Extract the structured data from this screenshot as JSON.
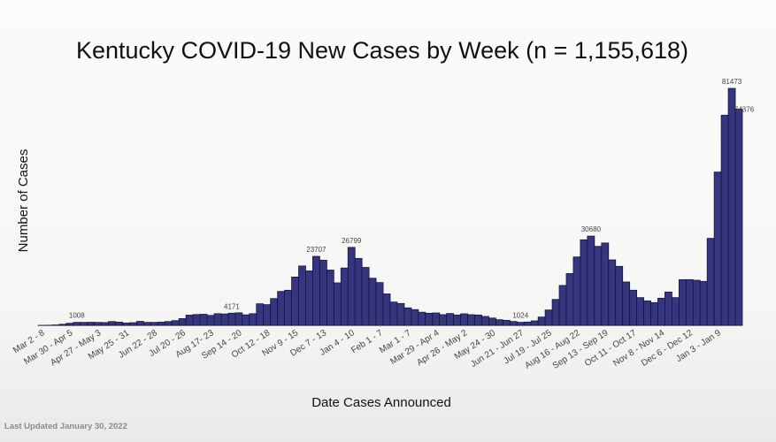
{
  "chart_data": {
    "type": "bar",
    "title": "Kentucky COVID-19 New Cases by Week (n = 1,155,618)",
    "xlabel": "Date Cases Announced",
    "ylabel": "Number of Cases",
    "ylim": [
      0,
      81473
    ],
    "grid": false,
    "bar_color": "#36367f",
    "bar_edge_color": "#14143f",
    "tick_labels": [
      "Mar 2 - 8",
      "Mar 30 - Apr 5",
      "Apr 27 - May 3",
      "May 25 - 31",
      "Jun 22 - 28",
      "Jul 20 - 26",
      "Aug 17- 23",
      "Sep 14 - 20",
      "Oct 12 - 18",
      "Nov 9 - 15",
      "Dec 7 - 13",
      "Jan 4 - 10",
      "Feb 1 - 7",
      "Mar 1 - 7",
      "Mar 29 - Apr 4",
      "Apr 26 - May 2",
      "May 24 - 30",
      "Jun 21 - Jun 27",
      "Jul 19 - Jul 25",
      "Aug 16 - Aug 22",
      "Sep 13 - Sep 19",
      "Oct 11 - Oct 17",
      "Nov 8 - Nov 14",
      "Dec 6 - Dec 12",
      "Jan 3 - Jan 9"
    ],
    "tick_every_n_weeks": 4,
    "values": [
      5,
      30,
      120,
      350,
      700,
      1008,
      1000,
      1050,
      1000,
      950,
      1300,
      1100,
      800,
      900,
      1350,
      1000,
      1000,
      1100,
      1300,
      1600,
      2300,
      3500,
      3700,
      3800,
      3400,
      4000,
      3900,
      4171,
      4300,
      3600,
      4000,
      7400,
      7100,
      9200,
      11650,
      12060,
      16600,
      20400,
      18700,
      23707,
      22400,
      19000,
      14600,
      19700,
      26799,
      23000,
      19900,
      16200,
      14700,
      10800,
      8000,
      7500,
      6000,
      5400,
      4500,
      4150,
      4250,
      3650,
      4050,
      3550,
      3950,
      3650,
      3550,
      3050,
      2500,
      1925,
      1720,
      1317,
      1024,
      1115,
      1520,
      2840,
      5270,
      8900,
      13700,
      17800,
      23500,
      29400,
      30680,
      27150,
      28300,
      22500,
      20270,
      14900,
      12060,
      9520,
      8400,
      7800,
      9320,
      11450,
      9520,
      15700,
      15700,
      15500,
      15100,
      29900,
      52700,
      72250,
      81473,
      74376
    ],
    "data_labels": [
      {
        "index": 5,
        "text": "1008"
      },
      {
        "index": 27,
        "text": "4171"
      },
      {
        "index": 39,
        "text": "23707"
      },
      {
        "index": 44,
        "text": "26799"
      },
      {
        "index": 68,
        "text": "1024"
      },
      {
        "index": 78,
        "text": "30680"
      },
      {
        "index": 98,
        "text": "81473"
      },
      {
        "index": 99,
        "text": "74376"
      }
    ]
  },
  "footer": {
    "last_updated": "Last Updated January 30, 2022"
  }
}
